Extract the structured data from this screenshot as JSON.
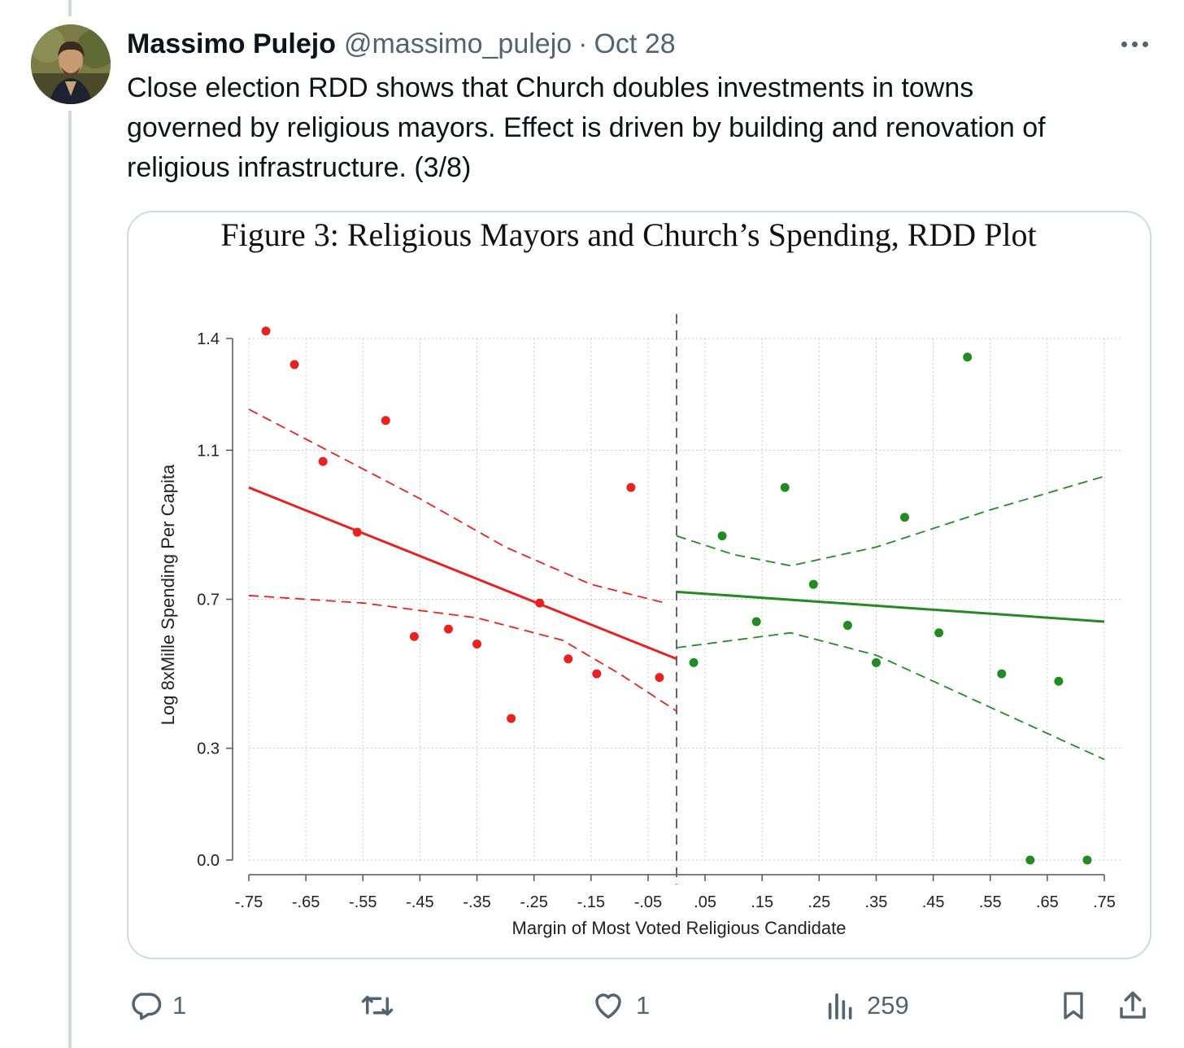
{
  "tweet": {
    "author_name": "Massimo Pulejo",
    "handle": "@massimo_pulejo",
    "separator": "·",
    "date": "Oct 28",
    "text_lines": [
      "Close election RDD shows that Church doubles investments in towns",
      "governed by religious mayors. Effect is driven by building and renovation of",
      "religious infrastructure.  (3/8)"
    ]
  },
  "actions": {
    "replies": "1",
    "retweets": "",
    "likes": "1",
    "views": "259"
  },
  "icons": [
    "avatar",
    "more-icon",
    "reply-icon",
    "retweet-icon",
    "like-icon",
    "views-icon",
    "bookmark-icon",
    "share-icon"
  ],
  "colors": {
    "left_series": "#e8231f",
    "right_series": "#228b22",
    "text_secondary": "#536471",
    "border": "#cfd9de"
  },
  "chart_data": {
    "type": "scatter",
    "title": "Figure 3: Religious Mayors and Church’s Spending, RDD Plot",
    "xlabel": "Margin of Most Voted Religious Candidate",
    "ylabel": "Log 8xMille Spending Per Capita",
    "x_ticks": [
      "-.75",
      "-.65",
      "-.55",
      "-.45",
      "-.35",
      "-.25",
      "-.15",
      "-.05",
      ".05",
      ".15",
      ".25",
      ".35",
      ".45",
      ".55",
      ".65",
      ".75"
    ],
    "y_ticks": [
      "0.0",
      "0.3",
      "0.7",
      "1.1",
      "1.4"
    ],
    "y_tick_values": [
      0.0,
      0.3,
      0.7,
      1.1,
      1.4
    ],
    "xlim": [
      -0.75,
      0.75
    ],
    "ylim": [
      0.0,
      1.4
    ],
    "grid": true,
    "cutoff": 0,
    "series": [
      {
        "color": "#e8231f",
        "points": [
          [
            -0.72,
            1.42
          ],
          [
            -0.67,
            1.33
          ],
          [
            -0.62,
            1.07
          ],
          [
            -0.56,
            0.88
          ],
          [
            -0.51,
            1.18
          ],
          [
            -0.46,
            0.6
          ],
          [
            -0.4,
            0.62
          ],
          [
            -0.35,
            0.58
          ],
          [
            -0.29,
            0.38
          ],
          [
            -0.24,
            0.69
          ],
          [
            -0.19,
            0.54
          ],
          [
            -0.14,
            0.5
          ],
          [
            -0.08,
            1.0
          ],
          [
            -0.03,
            0.49
          ]
        ],
        "fit": [
          [
            -0.75,
            1.0
          ],
          [
            0.0,
            0.54
          ]
        ],
        "ci_upper": [
          [
            -0.75,
            1.21
          ],
          [
            -0.6,
            1.09
          ],
          [
            -0.45,
            0.97
          ],
          [
            -0.3,
            0.84
          ],
          [
            -0.15,
            0.74
          ],
          [
            -0.02,
            0.69
          ]
        ],
        "ci_lower": [
          [
            -0.75,
            0.71
          ],
          [
            -0.55,
            0.69
          ],
          [
            -0.35,
            0.65
          ],
          [
            -0.2,
            0.59
          ],
          [
            -0.1,
            0.5
          ],
          [
            0.0,
            0.4
          ]
        ]
      },
      {
        "color": "#228b22",
        "points": [
          [
            0.03,
            0.53
          ],
          [
            0.08,
            0.87
          ],
          [
            0.14,
            0.64
          ],
          [
            0.19,
            1.0
          ],
          [
            0.24,
            0.74
          ],
          [
            0.3,
            0.63
          ],
          [
            0.35,
            0.53
          ],
          [
            0.4,
            0.92
          ],
          [
            0.46,
            0.61
          ],
          [
            0.51,
            1.35
          ],
          [
            0.57,
            0.5
          ],
          [
            0.62,
            0.0
          ],
          [
            0.67,
            0.48
          ],
          [
            0.72,
            0.0
          ]
        ],
        "fit": [
          [
            0.0,
            0.72
          ],
          [
            0.75,
            0.64
          ]
        ],
        "ci_upper": [
          [
            0.0,
            0.87
          ],
          [
            0.1,
            0.82
          ],
          [
            0.2,
            0.79
          ],
          [
            0.35,
            0.84
          ],
          [
            0.55,
            0.94
          ],
          [
            0.75,
            1.03
          ]
        ],
        "ci_lower": [
          [
            0.0,
            0.57
          ],
          [
            0.1,
            0.59
          ],
          [
            0.2,
            0.61
          ],
          [
            0.35,
            0.55
          ],
          [
            0.55,
            0.41
          ],
          [
            0.75,
            0.27
          ]
        ]
      }
    ]
  }
}
